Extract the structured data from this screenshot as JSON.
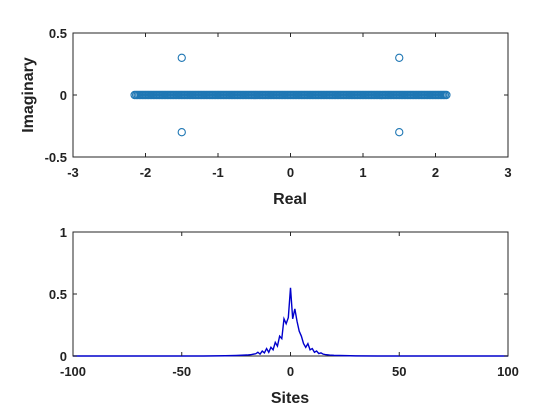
{
  "chart_data": [
    {
      "type": "scatter",
      "title": "",
      "xlabel": "Real",
      "ylabel": "Imaginary",
      "xlim": [
        -3,
        3
      ],
      "ylim": [
        -0.5,
        0.5
      ],
      "xticks": [
        -3,
        -2,
        -1,
        0,
        1,
        2,
        3
      ],
      "yticks": [
        -0.5,
        0,
        0.5
      ],
      "xtick_labels": [
        "-3",
        "-2",
        "-1",
        "0",
        "1",
        "2",
        "3"
      ],
      "ytick_labels": [
        "-0.5",
        "0",
        "0.5"
      ],
      "grid": false,
      "marker": "open-circle",
      "color": "#1f77b4",
      "band": {
        "x_min": -2.15,
        "x_max": 2.15,
        "y": 0
      },
      "isolated_points": [
        {
          "x": -1.5,
          "y": 0.3
        },
        {
          "x": 1.5,
          "y": 0.3
        },
        {
          "x": -1.5,
          "y": -0.3
        },
        {
          "x": 1.5,
          "y": -0.3
        }
      ]
    },
    {
      "type": "line",
      "title": "",
      "xlabel": "Sites",
      "ylabel": "",
      "xlim": [
        -100,
        100
      ],
      "ylim": [
        0,
        1
      ],
      "xticks": [
        -100,
        -50,
        0,
        50,
        100
      ],
      "yticks": [
        0,
        0.5,
        1
      ],
      "xtick_labels": [
        "-100",
        "-50",
        "0",
        "50",
        "100"
      ],
      "ytick_labels": [
        "0",
        "0.5",
        "1"
      ],
      "grid": false,
      "color": "#0000cc",
      "series": [
        {
          "x": [
            -100,
            -60,
            -40,
            -30,
            -25,
            -20,
            -18,
            -16,
            -15,
            -14,
            -13,
            -12,
            -11,
            -10,
            -9,
            -8,
            -7,
            -6,
            -5,
            -4,
            -3,
            -2,
            -1,
            0,
            1,
            2,
            3,
            4,
            5,
            6,
            7,
            8,
            9,
            10,
            11,
            12,
            13,
            14,
            15,
            16,
            18,
            20,
            25,
            30,
            40,
            60,
            100
          ],
          "values": [
            0,
            0,
            0,
            0.002,
            0.004,
            0.008,
            0.012,
            0.018,
            0.03,
            0.015,
            0.04,
            0.025,
            0.06,
            0.03,
            0.07,
            0.05,
            0.11,
            0.08,
            0.16,
            0.14,
            0.3,
            0.26,
            0.31,
            0.55,
            0.3,
            0.38,
            0.28,
            0.2,
            0.16,
            0.1,
            0.07,
            0.1,
            0.05,
            0.06,
            0.03,
            0.04,
            0.02,
            0.025,
            0.015,
            0.012,
            0.008,
            0.005,
            0.003,
            0.001,
            0,
            0,
            0
          ]
        }
      ]
    }
  ]
}
